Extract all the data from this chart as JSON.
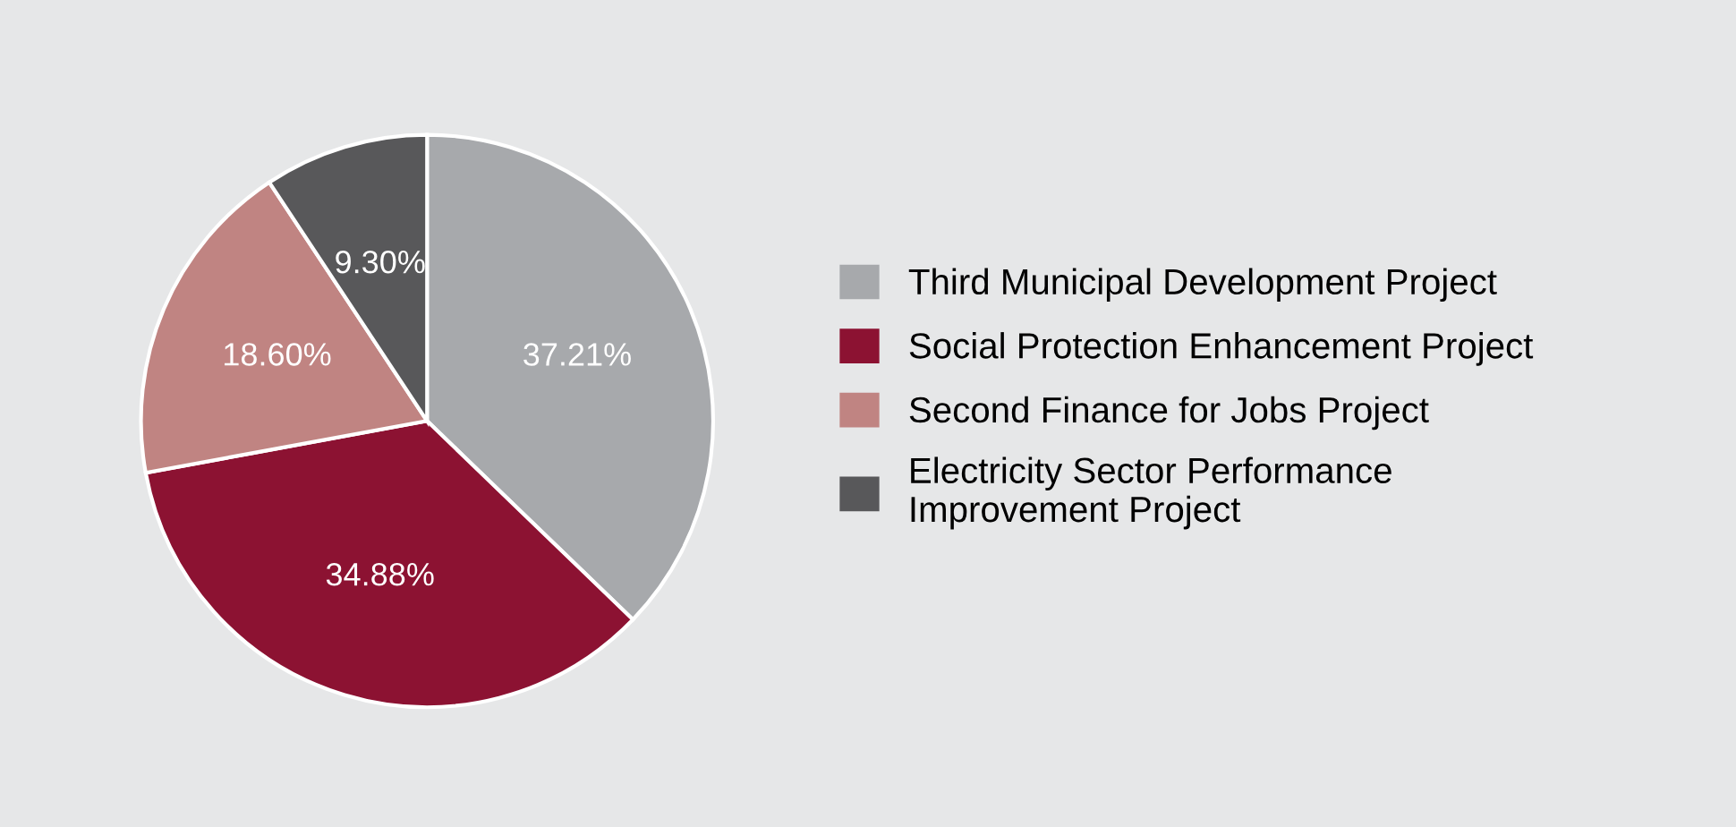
{
  "chart_data": {
    "type": "pie",
    "categories": [
      "Third Municipal Development Project",
      "Social Protection Enhancement Project",
      "Second Finance for Jobs Project",
      "Electricity Sector Performance\nImprovement Project"
    ],
    "values": [
      37.21,
      34.88,
      18.6,
      9.3
    ],
    "value_labels": [
      "37.21%",
      "34.88%",
      "18.60%",
      "9.30%"
    ],
    "colors": [
      "#a7a9ac",
      "#8c1232",
      "#c08482",
      "#58585a"
    ],
    "legend": "right"
  }
}
